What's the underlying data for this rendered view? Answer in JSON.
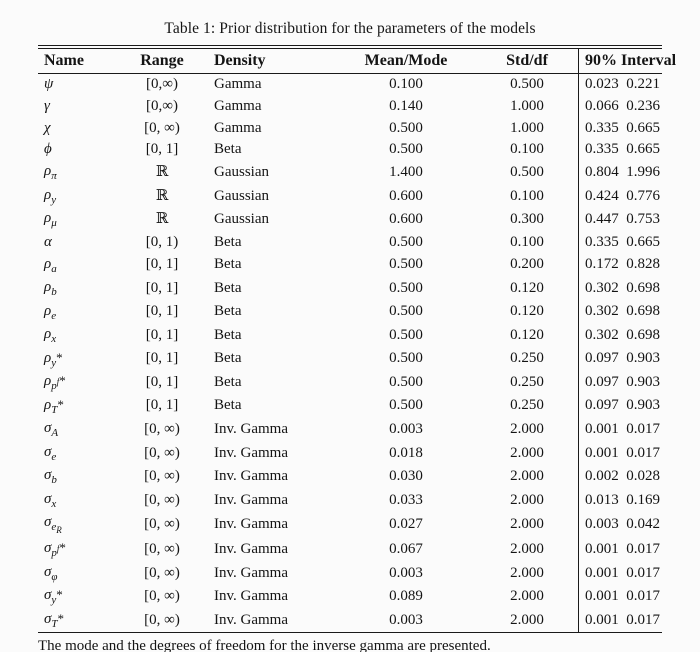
{
  "table": {
    "caption": "Table 1: Prior distribution for the parameters of the models",
    "headers": [
      "Name",
      "Range",
      "Density",
      "Mean/Mode",
      "Std/df",
      "90% Interval"
    ],
    "rows": [
      {
        "name": {
          "base": "ψ"
        },
        "range": "[0,∞)",
        "density": "Gamma",
        "mean": "0.100",
        "std": "0.500",
        "lo": "0.023",
        "hi": "0.221"
      },
      {
        "name": {
          "base": "γ"
        },
        "range": "[0,∞)",
        "density": "Gamma",
        "mean": "0.140",
        "std": "1.000",
        "lo": "0.066",
        "hi": "0.236"
      },
      {
        "name": {
          "base": "χ"
        },
        "range": "[0, ∞)",
        "density": "Gamma",
        "mean": "0.500",
        "std": "1.000",
        "lo": "0.335",
        "hi": "0.665"
      },
      {
        "name": {
          "base": "ϕ"
        },
        "range": "[0, 1]",
        "density": "Beta",
        "mean": "0.500",
        "std": "0.100",
        "lo": "0.335",
        "hi": "0.665"
      },
      {
        "name": {
          "base": "ρ",
          "sub": "π"
        },
        "range": "ℝ",
        "density": "Gaussian",
        "mean": "1.400",
        "std": "0.500",
        "lo": "0.804",
        "hi": "1.996"
      },
      {
        "name": {
          "base": "ρ",
          "sub": "y"
        },
        "range": "ℝ",
        "density": "Gaussian",
        "mean": "0.600",
        "std": "0.100",
        "lo": "0.424",
        "hi": "0.776"
      },
      {
        "name": {
          "base": "ρ",
          "sub": "μ"
        },
        "range": "ℝ",
        "density": "Gaussian",
        "mean": "0.600",
        "std": "0.300",
        "lo": "0.447",
        "hi": "0.753"
      },
      {
        "name": {
          "base": "α"
        },
        "range": "[0, 1)",
        "density": "Beta",
        "mean": "0.500",
        "std": "0.100",
        "lo": "0.335",
        "hi": "0.665"
      },
      {
        "name": {
          "base": "ρ",
          "sub": "a"
        },
        "range": "[0, 1]",
        "density": "Beta",
        "mean": "0.500",
        "std": "0.200",
        "lo": "0.172",
        "hi": "0.828"
      },
      {
        "name": {
          "base": "ρ",
          "sub": "b"
        },
        "range": "[0, 1]",
        "density": "Beta",
        "mean": "0.500",
        "std": "0.120",
        "lo": "0.302",
        "hi": "0.698"
      },
      {
        "name": {
          "base": "ρ",
          "sub": "e"
        },
        "range": "[0, 1]",
        "density": "Beta",
        "mean": "0.500",
        "std": "0.120",
        "lo": "0.302",
        "hi": "0.698"
      },
      {
        "name": {
          "base": "ρ",
          "sub": "x"
        },
        "range": "[0, 1]",
        "density": "Beta",
        "mean": "0.500",
        "std": "0.120",
        "lo": "0.302",
        "hi": "0.698"
      },
      {
        "name": {
          "base": "ρ",
          "sub": "y",
          "star": true
        },
        "range": "[0, 1]",
        "density": "Beta",
        "mean": "0.500",
        "std": "0.250",
        "lo": "0.097",
        "hi": "0.903"
      },
      {
        "name": {
          "base": "ρ",
          "sub": "p",
          "subsup": "f",
          "star": true
        },
        "range": "[0, 1]",
        "density": "Beta",
        "mean": "0.500",
        "std": "0.250",
        "lo": "0.097",
        "hi": "0.903"
      },
      {
        "name": {
          "base": "ρ",
          "sub": "T",
          "star": true
        },
        "range": "[0, 1]",
        "density": "Beta",
        "mean": "0.500",
        "std": "0.250",
        "lo": "0.097",
        "hi": "0.903"
      },
      {
        "name": {
          "base": "σ",
          "sub": "A"
        },
        "range": "[0, ∞)",
        "density": "Inv. Gamma",
        "mean": "0.003",
        "std": "2.000",
        "lo": "0.001",
        "hi": "0.017"
      },
      {
        "name": {
          "base": "σ",
          "sub": "e"
        },
        "range": "[0, ∞)",
        "density": "Inv. Gamma",
        "mean": "0.018",
        "std": "2.000",
        "lo": "0.001",
        "hi": "0.017"
      },
      {
        "name": {
          "base": "σ",
          "sub": "b"
        },
        "range": "[0, ∞)",
        "density": "Inv. Gamma",
        "mean": "0.030",
        "std": "2.000",
        "lo": "0.002",
        "hi": "0.028"
      },
      {
        "name": {
          "base": "σ",
          "sub": "x"
        },
        "range": "[0, ∞)",
        "density": "Inv. Gamma",
        "mean": "0.033",
        "std": "2.000",
        "lo": "0.013",
        "hi": "0.169"
      },
      {
        "name": {
          "base": "σ",
          "sub": "e",
          "subsub": "R"
        },
        "range": "[0, ∞)",
        "density": "Inv. Gamma",
        "mean": "0.027",
        "std": "2.000",
        "lo": "0.003",
        "hi": "0.042"
      },
      {
        "name": {
          "base": "σ",
          "sub": "p",
          "subsup": "f",
          "star": true
        },
        "range": "[0, ∞)",
        "density": "Inv. Gamma",
        "mean": "0.067",
        "std": "2.000",
        "lo": "0.001",
        "hi": "0.017"
      },
      {
        "name": {
          "base": "σ",
          "sub": "φ"
        },
        "range": "[0, ∞)",
        "density": "Inv. Gamma",
        "mean": "0.003",
        "std": "2.000",
        "lo": "0.001",
        "hi": "0.017"
      },
      {
        "name": {
          "base": "σ",
          "sub": "y",
          "star": true
        },
        "range": "[0, ∞)",
        "density": "Inv. Gamma",
        "mean": "0.089",
        "std": "2.000",
        "lo": "0.001",
        "hi": "0.017"
      },
      {
        "name": {
          "base": "σ",
          "sub": "T",
          "star": true
        },
        "range": "[0, ∞)",
        "density": "Inv. Gamma",
        "mean": "0.003",
        "std": "2.000",
        "lo": "0.001",
        "hi": "0.017"
      }
    ],
    "footnote": "The mode and the degrees of freedom for the inverse gamma are presented."
  }
}
